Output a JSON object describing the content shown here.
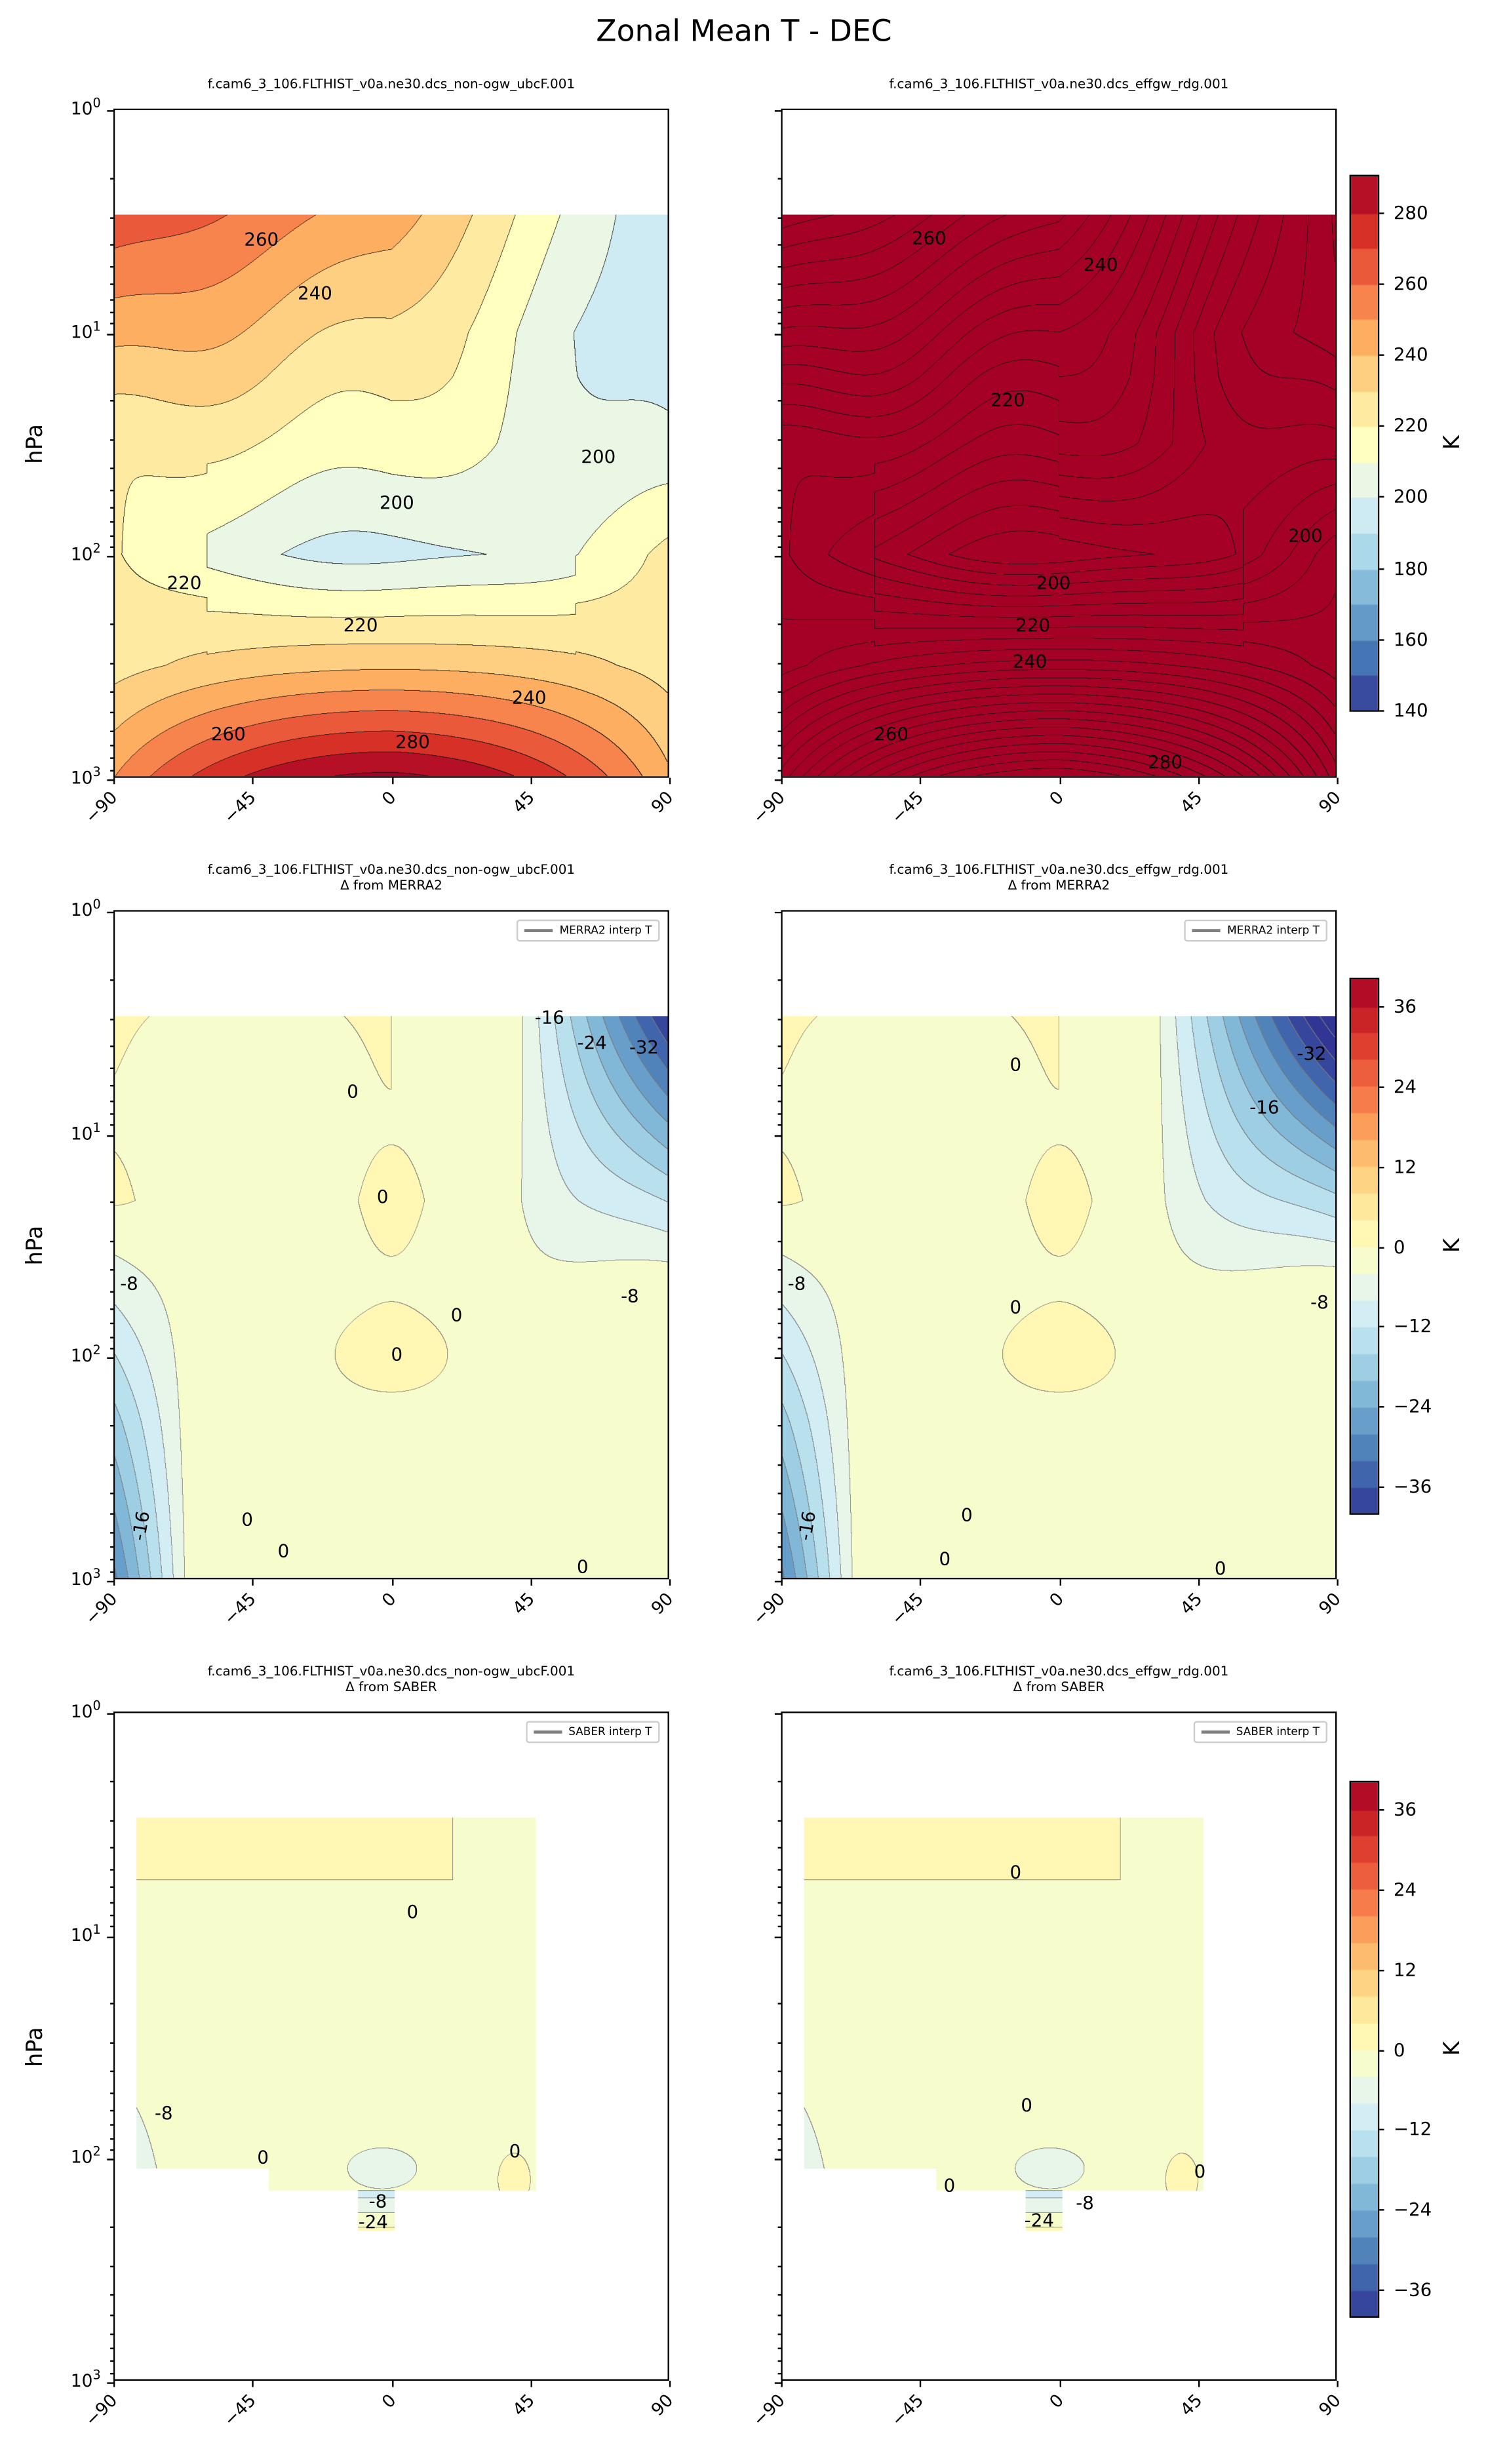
{
  "chart_data": {
    "type": "heatmap",
    "title": "Zonal Mean T - DEC",
    "xlim": [
      -90,
      90
    ],
    "xticks": [
      "−90",
      "−45",
      "0",
      "45",
      "90"
    ],
    "ylabel": "hPa",
    "ylim_hPa": [
      1,
      1000
    ],
    "yscale": "log",
    "yticks": [
      {
        "base": "10",
        "exp": "0"
      },
      {
        "base": "10",
        "exp": "1"
      },
      {
        "base": "10",
        "exp": "2"
      },
      {
        "base": "10",
        "exp": "3"
      }
    ],
    "colormap": [
      "#313695",
      "#4575b4",
      "#74add1",
      "#abd9e9",
      "#e0f3f8",
      "#ffffbf",
      "#fee090",
      "#fdae61",
      "#f46d43",
      "#d73027",
      "#a50026"
    ],
    "colorbars": [
      {
        "label": "K",
        "range": [
          140,
          290
        ],
        "step": 10,
        "ticks": [
          "140",
          "160",
          "180",
          "200",
          "220",
          "240",
          "260",
          "280"
        ]
      },
      {
        "label": "K",
        "range": [
          -40,
          40
        ],
        "step": 4,
        "ticks": [
          "−36",
          "−24",
          "−12",
          "0",
          "12",
          "24",
          "36"
        ]
      },
      {
        "label": "K",
        "range": [
          -40,
          40
        ],
        "step": 4,
        "ticks": [
          "−36",
          "−24",
          "−12",
          "0",
          "12",
          "24",
          "36"
        ]
      }
    ],
    "panels": [
      {
        "title": "f.cam6_3_106.FLTHIST_v0a.ne30.dcs_non-ogw_ubcF.001",
        "subtitle": "",
        "field": "T",
        "contour_labels": [
          "260",
          "240",
          "200",
          "200",
          "220",
          "220",
          "240",
          "260",
          "280"
        ]
      },
      {
        "title": "f.cam6_3_106.FLTHIST_v0a.ne30.dcs_effgw_rdg.001",
        "subtitle": "",
        "field": "T",
        "contour_labels": [
          "260",
          "240",
          "220",
          "200",
          "200",
          "220",
          "240",
          "260",
          "280"
        ]
      },
      {
        "title": "f.cam6_3_106.FLTHIST_v0a.ne30.dcs_non-ogw_ubcF.001",
        "subtitle": "Δ from MERRA2",
        "field": "dT",
        "legend": "MERRA2 interp T",
        "contour_labels": [
          "-16",
          "-24",
          "-32",
          "0",
          "0",
          "-8",
          "-8",
          "0",
          "0",
          "-16",
          "0",
          "0",
          "0"
        ]
      },
      {
        "title": "f.cam6_3_106.FLTHIST_v0a.ne30.dcs_effgw_rdg.001",
        "subtitle": "Δ from MERRA2",
        "field": "dT",
        "legend": "MERRA2 interp T",
        "contour_labels": [
          "-32",
          "0",
          "-16",
          "-8",
          "-8",
          "0",
          "-16",
          "0",
          "0",
          "0"
        ]
      },
      {
        "title": "f.cam6_3_106.FLTHIST_v0a.ne30.dcs_non-ogw_ubcF.001",
        "subtitle": "Δ from SABER",
        "field": "dT",
        "legend": "SABER interp T",
        "contour_labels": [
          "0",
          "-8",
          "0",
          "0",
          "-8",
          "-24"
        ]
      },
      {
        "title": "f.cam6_3_106.FLTHIST_v0a.ne30.dcs_effgw_rdg.001",
        "subtitle": "Δ from SABER",
        "field": "dT",
        "legend": "SABER interp T",
        "contour_labels": [
          "0",
          "0",
          "-8",
          "0",
          "0",
          "-24"
        ]
      }
    ]
  }
}
